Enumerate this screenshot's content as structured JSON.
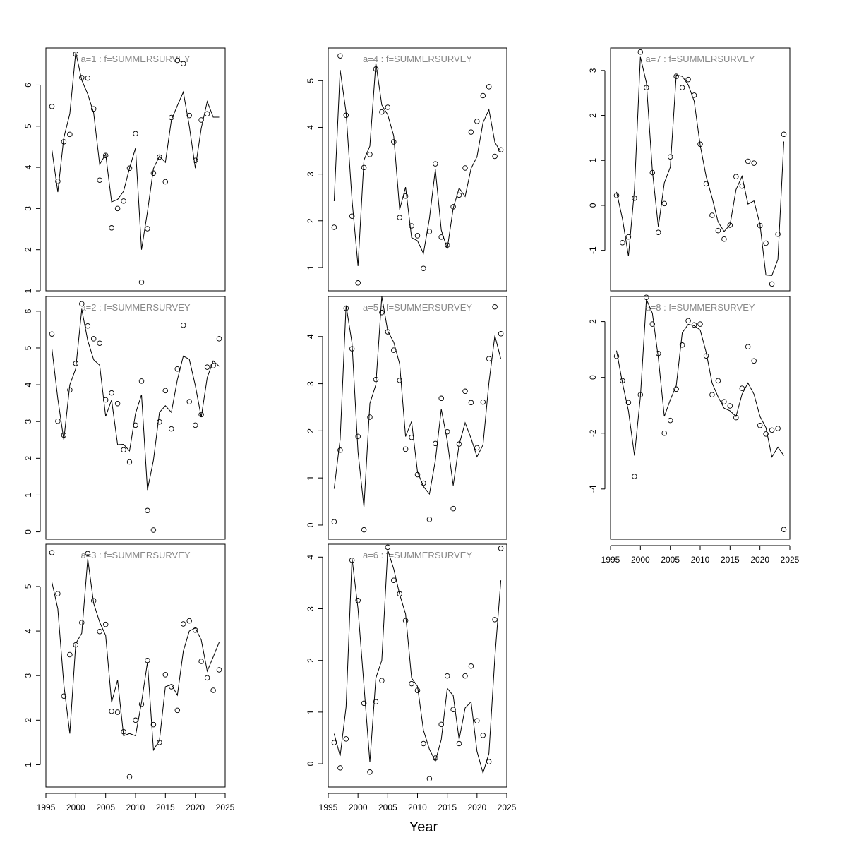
{
  "figure": {
    "xlabel": "Year"
  },
  "chart_data": [
    {
      "type": "scatter",
      "title": "a=1  :  f=SUMMERSURVEY",
      "x": [
        1996,
        1997,
        1998,
        1999,
        2000,
        2001,
        2002,
        2003,
        2004,
        2005,
        2006,
        2007,
        2008,
        2009,
        2010,
        2011,
        2012,
        2013,
        2014,
        2015,
        2016,
        2017,
        2018,
        2019,
        2020,
        2021,
        2022,
        2023,
        2024
      ],
      "xlim": [
        1995,
        2025
      ],
      "ylim": [
        1,
        6.9
      ],
      "yticks": [
        1,
        2,
        3,
        4,
        5,
        6
      ],
      "xticks": [],
      "series": [
        {
          "kind": "points",
          "values": [
            5.48,
            3.66,
            4.62,
            4.8,
            6.75,
            6.18,
            6.17,
            5.42,
            3.69,
            4.29,
            2.53,
            3.0,
            3.18,
            3.98,
            4.82,
            1.21,
            2.51,
            3.86,
            4.25,
            3.65,
            5.21,
            6.6,
            6.52,
            5.26,
            4.17,
            5.15,
            5.3,
            null,
            null
          ]
        },
        {
          "kind": "line",
          "values": [
            4.43,
            3.4,
            4.72,
            5.3,
            6.8,
            6.12,
            5.78,
            5.32,
            4.07,
            4.32,
            3.16,
            3.22,
            3.42,
            3.98,
            4.47,
            2.0,
            2.92,
            3.97,
            4.27,
            4.12,
            5.15,
            5.5,
            5.83,
            5.0,
            3.98,
            4.95,
            5.6,
            5.22,
            5.22
          ]
        }
      ]
    },
    {
      "type": "scatter",
      "title": "a=2  :  f=SUMMERSURVEY",
      "x": [
        1996,
        1997,
        1998,
        1999,
        2000,
        2001,
        2002,
        2003,
        2004,
        2005,
        2006,
        2007,
        2008,
        2009,
        2010,
        2011,
        2012,
        2013,
        2014,
        2015,
        2016,
        2017,
        2018,
        2019,
        2020,
        2021,
        2022,
        2023,
        2024
      ],
      "xlim": [
        1995,
        2025
      ],
      "ylim": [
        -0.2,
        6.4
      ],
      "yticks": [
        0,
        1,
        2,
        3,
        4,
        5,
        6
      ],
      "xticks": [],
      "series": [
        {
          "kind": "points",
          "values": [
            5.38,
            3.01,
            2.63,
            3.86,
            4.58,
            6.2,
            5.6,
            5.25,
            5.13,
            3.59,
            3.78,
            3.49,
            2.23,
            1.9,
            2.9,
            4.1,
            0.58,
            0.05,
            2.99,
            3.84,
            2.8,
            4.43,
            5.62,
            3.54,
            2.9,
            3.19,
            4.48,
            4.52,
            5.25
          ]
        },
        {
          "kind": "line",
          "values": [
            4.99,
            3.62,
            2.5,
            4.0,
            4.44,
            6.05,
            5.2,
            4.68,
            4.53,
            3.14,
            3.59,
            2.37,
            2.38,
            2.2,
            3.22,
            3.73,
            1.14,
            1.95,
            3.25,
            3.43,
            3.25,
            4.14,
            4.78,
            4.69,
            3.98,
            3.12,
            4.2,
            4.65,
            4.5
          ]
        }
      ]
    },
    {
      "type": "scatter",
      "title": "a=3  :  f=SUMMERSURVEY",
      "x": [
        1996,
        1997,
        1998,
        1999,
        2000,
        2001,
        2002,
        2003,
        2004,
        2005,
        2006,
        2007,
        2008,
        2009,
        2010,
        2011,
        2012,
        2013,
        2014,
        2015,
        2016,
        2017,
        2018,
        2019,
        2020,
        2021,
        2022,
        2023,
        2024
      ],
      "xlim": [
        1995,
        2025
      ],
      "ylim": [
        0.5,
        5.95
      ],
      "yticks": [
        1,
        2,
        3,
        4,
        5
      ],
      "xticks": [
        1995,
        2000,
        2005,
        2010,
        2015,
        2020,
        2025
      ],
      "series": [
        {
          "kind": "points",
          "values": [
            5.76,
            4.84,
            2.54,
            3.47,
            3.69,
            4.19,
            5.74,
            4.68,
            3.99,
            4.15,
            2.2,
            2.18,
            1.74,
            0.73,
            2.0,
            2.36,
            3.34,
            1.9,
            1.5,
            3.02,
            2.75,
            2.22,
            4.16,
            4.23,
            4.02,
            3.32,
            2.95,
            2.67,
            3.13
          ]
        },
        {
          "kind": "line",
          "values": [
            5.1,
            4.5,
            2.8,
            1.7,
            3.72,
            3.95,
            5.62,
            4.62,
            4.2,
            3.9,
            2.4,
            2.9,
            1.65,
            1.7,
            1.65,
            2.4,
            3.3,
            1.33,
            1.55,
            2.75,
            2.8,
            2.56,
            3.55,
            4.0,
            4.07,
            3.8,
            3.1,
            3.42,
            3.75
          ]
        }
      ]
    },
    {
      "type": "scatter",
      "title": "a=4  :  f=SUMMERSURVEY",
      "x": [
        1996,
        1997,
        1998,
        1999,
        2000,
        2001,
        2002,
        2003,
        2004,
        2005,
        2006,
        2007,
        2008,
        2009,
        2010,
        2011,
        2012,
        2013,
        2014,
        2015,
        2016,
        2017,
        2018,
        2019,
        2020,
        2021,
        2022,
        2023,
        2024
      ],
      "xlim": [
        1995,
        2025
      ],
      "ylim": [
        0.5,
        5.7
      ],
      "yticks": [
        1,
        2,
        3,
        4,
        5
      ],
      "xticks": [],
      "series": [
        {
          "kind": "points",
          "values": [
            1.86,
            5.53,
            4.26,
            2.1,
            0.67,
            3.14,
            3.42,
            5.25,
            4.33,
            4.43,
            3.69,
            2.07,
            2.53,
            1.89,
            1.68,
            0.98,
            1.77,
            3.22,
            1.65,
            1.48,
            2.3,
            2.55,
            3.13,
            3.9,
            4.13,
            4.68,
            4.87,
            3.38,
            3.52
          ]
        },
        {
          "kind": "line",
          "values": [
            2.42,
            5.23,
            4.32,
            2.45,
            1.03,
            3.3,
            3.6,
            5.38,
            4.48,
            4.27,
            3.82,
            2.24,
            2.72,
            1.64,
            1.57,
            1.3,
            2.05,
            3.1,
            1.8,
            1.4,
            2.27,
            2.7,
            2.52,
            3.12,
            3.37,
            4.1,
            4.38,
            3.68,
            3.47
          ]
        }
      ]
    },
    {
      "type": "scatter",
      "title": "a=5  :  f=SUMMERSURVEY",
      "x": [
        1996,
        1997,
        1998,
        1999,
        2000,
        2001,
        2002,
        2003,
        2004,
        2005,
        2006,
        2007,
        2008,
        2009,
        2010,
        2011,
        2012,
        2013,
        2014,
        2015,
        2016,
        2017,
        2018,
        2019,
        2020,
        2021,
        2022,
        2023,
        2024
      ],
      "xlim": [
        1995,
        2025
      ],
      "ylim": [
        -0.3,
        4.85
      ],
      "yticks": [
        0,
        1,
        2,
        3,
        4
      ],
      "xticks": [],
      "series": [
        {
          "kind": "points",
          "values": [
            0.07,
            1.59,
            4.6,
            3.74,
            1.88,
            -0.1,
            2.29,
            3.09,
            4.51,
            4.1,
            3.71,
            3.07,
            1.61,
            1.86,
            1.07,
            0.89,
            0.12,
            1.73,
            2.69,
            1.98,
            0.35,
            1.72,
            2.84,
            2.6,
            1.64,
            2.61,
            3.53,
            4.63,
            4.06
          ]
        },
        {
          "kind": "line",
          "values": [
            0.77,
            1.82,
            4.66,
            3.86,
            1.55,
            0.38,
            2.58,
            2.98,
            4.85,
            4.12,
            3.88,
            3.42,
            1.88,
            2.2,
            1.13,
            0.82,
            0.66,
            1.37,
            2.46,
            1.79,
            0.84,
            1.71,
            2.17,
            1.84,
            1.45,
            1.7,
            3.02,
            4.02,
            3.52
          ]
        }
      ]
    },
    {
      "type": "scatter",
      "title": "a=6  :  f=SUMMERSURVEY",
      "x": [
        1996,
        1997,
        1998,
        1999,
        2000,
        2001,
        2002,
        2003,
        2004,
        2005,
        2006,
        2007,
        2008,
        2009,
        2010,
        2011,
        2012,
        2013,
        2014,
        2015,
        2016,
        2017,
        2018,
        2019,
        2020,
        2021,
        2022,
        2023,
        2024
      ],
      "xlim": [
        1995,
        2025
      ],
      "ylim": [
        -0.45,
        4.25
      ],
      "yticks": [
        0,
        1,
        2,
        3,
        4
      ],
      "xticks": [
        1995,
        2000,
        2005,
        2010,
        2015,
        2020,
        2025
      ],
      "series": [
        {
          "kind": "points",
          "values": [
            0.41,
            -0.08,
            0.48,
            3.94,
            3.16,
            1.17,
            -0.16,
            1.2,
            1.61,
            4.19,
            3.55,
            3.29,
            2.77,
            1.55,
            1.42,
            0.39,
            -0.29,
            0.11,
            0.76,
            1.7,
            1.05,
            0.39,
            1.7,
            1.89,
            0.83,
            0.55,
            0.04,
            2.79,
            4.17
          ]
        },
        {
          "kind": "line",
          "values": [
            0.58,
            0.15,
            1.1,
            3.98,
            3.0,
            1.52,
            0.03,
            1.66,
            2.0,
            4.14,
            3.77,
            3.28,
            2.9,
            1.66,
            1.5,
            0.65,
            0.28,
            0.05,
            0.47,
            1.46,
            1.32,
            0.47,
            1.08,
            1.2,
            0.24,
            -0.18,
            0.2,
            2.06,
            3.55
          ]
        }
      ]
    },
    {
      "type": "scatter",
      "title": "a=7  :  f=SUMMERSURVEY",
      "x": [
        1996,
        1997,
        1998,
        1999,
        2000,
        2001,
        2002,
        2003,
        2004,
        2005,
        2006,
        2007,
        2008,
        2009,
        2010,
        2011,
        2012,
        2013,
        2014,
        2015,
        2016,
        2017,
        2018,
        2019,
        2020,
        2021,
        2022,
        2023,
        2024
      ],
      "xlim": [
        1995,
        2025
      ],
      "ylim": [
        -1.9,
        3.5
      ],
      "yticks": [
        -1,
        0,
        1,
        2,
        3
      ],
      "xticks": [],
      "series": [
        {
          "kind": "points",
          "values": [
            0.22,
            -0.83,
            -0.7,
            0.16,
            3.41,
            2.62,
            0.73,
            -0.6,
            0.04,
            1.08,
            2.87,
            2.62,
            2.8,
            2.45,
            1.36,
            0.48,
            -0.22,
            -0.56,
            -0.75,
            -0.44,
            0.64,
            0.43,
            0.98,
            0.94,
            -0.45,
            -0.84,
            -1.75,
            -0.64,
            1.58
          ]
        },
        {
          "kind": "line",
          "values": [
            0.3,
            -0.3,
            -1.13,
            0.35,
            3.3,
            2.73,
            0.77,
            -0.48,
            0.5,
            0.85,
            2.9,
            2.87,
            2.68,
            2.32,
            1.34,
            0.64,
            0.17,
            -0.37,
            -0.58,
            -0.43,
            0.35,
            0.65,
            0.03,
            0.1,
            -0.42,
            -1.55,
            -1.56,
            -1.2,
            1.42
          ]
        }
      ]
    },
    {
      "type": "scatter",
      "title": "a=8  :  f=SUMMERSURVEY",
      "x": [
        1996,
        1997,
        1998,
        1999,
        2000,
        2001,
        2002,
        2003,
        2004,
        2005,
        2006,
        2007,
        2008,
        2009,
        2010,
        2011,
        2012,
        2013,
        2014,
        2015,
        2016,
        2017,
        2018,
        2019,
        2020,
        2021,
        2022,
        2023,
        2024
      ],
      "xlim": [
        1995,
        2025
      ],
      "ylim": [
        -5.8,
        2.9
      ],
      "yticks": [
        -4,
        -2,
        0,
        2
      ],
      "xticks": [
        1995,
        2000,
        2005,
        2010,
        2015,
        2020,
        2025
      ],
      "series": [
        {
          "kind": "points",
          "values": [
            0.76,
            -0.12,
            -0.9,
            -3.55,
            -0.62,
            2.87,
            1.91,
            0.86,
            -2.0,
            -1.54,
            -0.42,
            1.16,
            2.03,
            1.88,
            1.91,
            0.77,
            -0.62,
            -0.12,
            -0.87,
            -1.02,
            -1.44,
            -0.39,
            1.1,
            0.59,
            -1.72,
            -2.03,
            -1.89,
            -1.83,
            -5.45
          ]
        },
        {
          "kind": "line",
          "values": [
            0.96,
            -0.2,
            -1.2,
            -2.8,
            -0.7,
            2.8,
            2.3,
            0.7,
            -1.4,
            -0.8,
            -0.3,
            1.6,
            1.9,
            1.85,
            1.7,
            0.9,
            -0.2,
            -0.7,
            -1.1,
            -1.2,
            -1.4,
            -0.6,
            -0.2,
            -0.6,
            -1.4,
            -1.8,
            -2.85,
            -2.5,
            -2.8
          ]
        }
      ]
    }
  ]
}
